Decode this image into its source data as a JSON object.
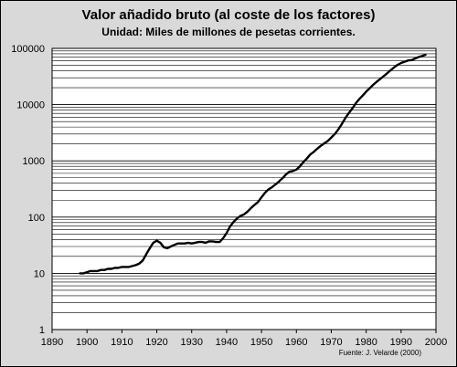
{
  "chart_data": {
    "type": "line",
    "title": "Valor añadido bruto (al coste de los factores)",
    "subtitle": "Unidad: Miles de millones de pesetas corrientes.",
    "xlabel": "",
    "ylabel": "",
    "y_scale": "log",
    "xlim": [
      1890,
      2000
    ],
    "ylim": [
      1,
      100000
    ],
    "x_ticks": [
      1890,
      1900,
      1910,
      1920,
      1930,
      1940,
      1950,
      1960,
      1970,
      1980,
      1990,
      2000
    ],
    "y_ticks": [
      1,
      10,
      100,
      1000,
      10000,
      100000
    ],
    "x_tick_labels": [
      "1890",
      "1900",
      "1910",
      "1920",
      "1930",
      "1940",
      "1950",
      "1960",
      "1970",
      "1980",
      "1990",
      "2000"
    ],
    "y_tick_labels": [
      "1",
      "10",
      "100",
      "1000",
      "10000",
      "100000"
    ],
    "grid": "horizontal-minor",
    "line_color": "#000000",
    "series": [
      {
        "x": [
          1898,
          1899,
          1900,
          1901,
          1902,
          1903,
          1904,
          1905,
          1906,
          1907,
          1908,
          1909,
          1910,
          1911,
          1912,
          1913,
          1914,
          1915,
          1916,
          1917,
          1918,
          1919,
          1920,
          1921,
          1922,
          1923,
          1924,
          1925,
          1926,
          1927,
          1928,
          1929,
          1930,
          1931,
          1932,
          1933,
          1934,
          1935,
          1936,
          1937,
          1938,
          1939,
          1940,
          1941,
          1942,
          1943,
          1944,
          1945,
          1946,
          1947,
          1948,
          1949,
          1950,
          1951,
          1952,
          1953,
          1954,
          1955,
          1956,
          1957,
          1958,
          1959,
          1960,
          1961,
          1962,
          1963,
          1964,
          1965,
          1966,
          1967,
          1968,
          1969,
          1970,
          1971,
          1972,
          1973,
          1974,
          1975,
          1976,
          1977,
          1978,
          1979,
          1980,
          1981,
          1982,
          1983,
          1984,
          1985,
          1986,
          1987,
          1988,
          1989,
          1990,
          1991,
          1992,
          1993,
          1994,
          1995,
          1996,
          1997
        ],
        "values": [
          10,
          10,
          10.5,
          11,
          11,
          11,
          11.5,
          11.5,
          12,
          12,
          12.5,
          12.5,
          13,
          13,
          13,
          13.5,
          14,
          15,
          17,
          22,
          28,
          35,
          38,
          35,
          29,
          28,
          30,
          32,
          34,
          34,
          34,
          35,
          34,
          35,
          36,
          36,
          35,
          37,
          37,
          36,
          36,
          42,
          52,
          68,
          82,
          95,
          105,
          112,
          125,
          145,
          165,
          185,
          225,
          270,
          310,
          340,
          380,
          430,
          490,
          570,
          640,
          660,
          700,
          800,
          950,
          1100,
          1300,
          1450,
          1650,
          1850,
          2050,
          2250,
          2600,
          3000,
          3600,
          4500,
          5700,
          7000,
          8500,
          10500,
          12500,
          14500,
          17000,
          19500,
          22500,
          25500,
          28500,
          32000,
          36000,
          41000,
          46000,
          51000,
          55000,
          58000,
          61000,
          62000,
          66000,
          70000,
          73000,
          77000
        ]
      }
    ]
  },
  "source": "Fuente: J. Velarde (2000)"
}
